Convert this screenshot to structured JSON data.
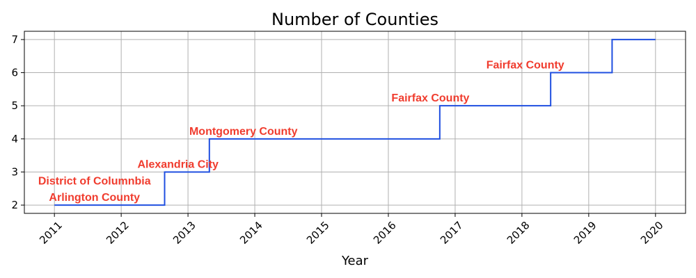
{
  "chart_data": {
    "type": "line",
    "step": "post",
    "title": "Number of Counties",
    "xlabel": "Year",
    "ylabel": "",
    "xlim": [
      2010.55,
      2020.45
    ],
    "ylim": [
      1.75,
      7.25
    ],
    "xticks": [
      2011,
      2012,
      2013,
      2014,
      2015,
      2016,
      2017,
      2018,
      2019,
      2020
    ],
    "yticks": [
      2,
      3,
      4,
      5,
      6,
      7
    ],
    "xtick_rotation": 45,
    "grid": true,
    "series": [
      {
        "color": "#1f4fe0",
        "points": [
          [
            2011.0,
            2
          ],
          [
            2012.65,
            3
          ],
          [
            2013.32,
            4
          ],
          [
            2016.77,
            5
          ],
          [
            2018.43,
            6
          ],
          [
            2019.35,
            7
          ],
          [
            2020.0,
            7
          ]
        ]
      }
    ],
    "annotations": [
      {
        "text": "Arlington County",
        "x": 2011.6,
        "y": 2,
        "color": "#f03c2e"
      },
      {
        "text": "District of Columnbia",
        "x": 2011.6,
        "y": 2.5,
        "color": "#f03c2e"
      },
      {
        "text": "Alexandria City",
        "x": 2012.85,
        "y": 3,
        "color": "#f03c2e"
      },
      {
        "text": "Montgomery County",
        "x": 2013.83,
        "y": 4,
        "color": "#f03c2e"
      },
      {
        "text": "Fairfax County",
        "x": 2016.63,
        "y": 5,
        "color": "#f03c2e"
      },
      {
        "text": "Fairfax County",
        "x": 2018.05,
        "y": 6,
        "color": "#f03c2e"
      }
    ]
  }
}
